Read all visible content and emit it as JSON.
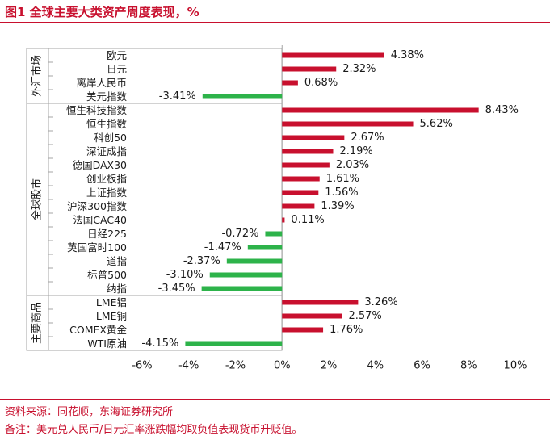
{
  "header": {
    "title": "图1  全球主要大类资产周度表现，%"
  },
  "footer": {
    "source": "资料来源：同花顺，东海证券研究所",
    "note": "备注：美元兑人民币/日元汇率涨跌幅均取负值表现货币升贬值。"
  },
  "chart_data": {
    "type": "bar",
    "orientation": "horizontal",
    "title": "全球主要大类资产周度表现，%",
    "xlim": [
      -6,
      10
    ],
    "x_ticks": [
      -6,
      -4,
      -2,
      0,
      2,
      4,
      6,
      8,
      10
    ],
    "x_tick_labels": [
      "-6%",
      "-4%",
      "-2%",
      "0%",
      "2%",
      "4%",
      "6%",
      "8%",
      "10%"
    ],
    "positive_color": "#c8102e",
    "negative_color": "#2db34a",
    "grid": false,
    "groups": [
      {
        "name": "外汇市场",
        "categories": [
          "欧元",
          "日元",
          "离岸人民币",
          "美元指数"
        ]
      },
      {
        "name": "全球股市",
        "categories": [
          "恒生科技指数",
          "恒生指数",
          "科创50",
          "深证成指",
          "德国DAX30",
          "创业板指",
          "上证指数",
          "沪深300指数",
          "法国CAC40",
          "日经225",
          "英国富时100",
          "道指",
          "标普500",
          "纳指"
        ]
      },
      {
        "name": "主要商品",
        "categories": [
          "LME铝",
          "LME铜",
          "COMEX黄金",
          "WTI原油"
        ]
      }
    ],
    "categories": [
      "欧元",
      "日元",
      "离岸人民币",
      "美元指数",
      "恒生科技指数",
      "恒生指数",
      "科创50",
      "深证成指",
      "德国DAX30",
      "创业板指",
      "上证指数",
      "沪深300指数",
      "法国CAC40",
      "日经225",
      "英国富时100",
      "道指",
      "标普500",
      "纳指",
      "LME铝",
      "LME铜",
      "COMEX黄金",
      "WTI原油"
    ],
    "values": [
      4.38,
      2.32,
      0.68,
      -3.41,
      8.43,
      5.62,
      2.67,
      2.19,
      2.03,
      1.61,
      1.56,
      1.39,
      0.11,
      -0.72,
      -1.47,
      -2.37,
      -3.1,
      -3.45,
      3.26,
      2.57,
      1.76,
      -4.15
    ],
    "value_labels": [
      "4.38%",
      "2.32%",
      "0.68%",
      "-3.41%",
      "8.43%",
      "5.62%",
      "2.67%",
      "2.19%",
      "2.03%",
      "1.61%",
      "1.56%",
      "1.39%",
      "0.11%",
      "-0.72%",
      "-1.47%",
      "-2.37%",
      "-3.10%",
      "-3.45%",
      "3.26%",
      "2.57%",
      "1.76%",
      "-4.15%"
    ]
  }
}
